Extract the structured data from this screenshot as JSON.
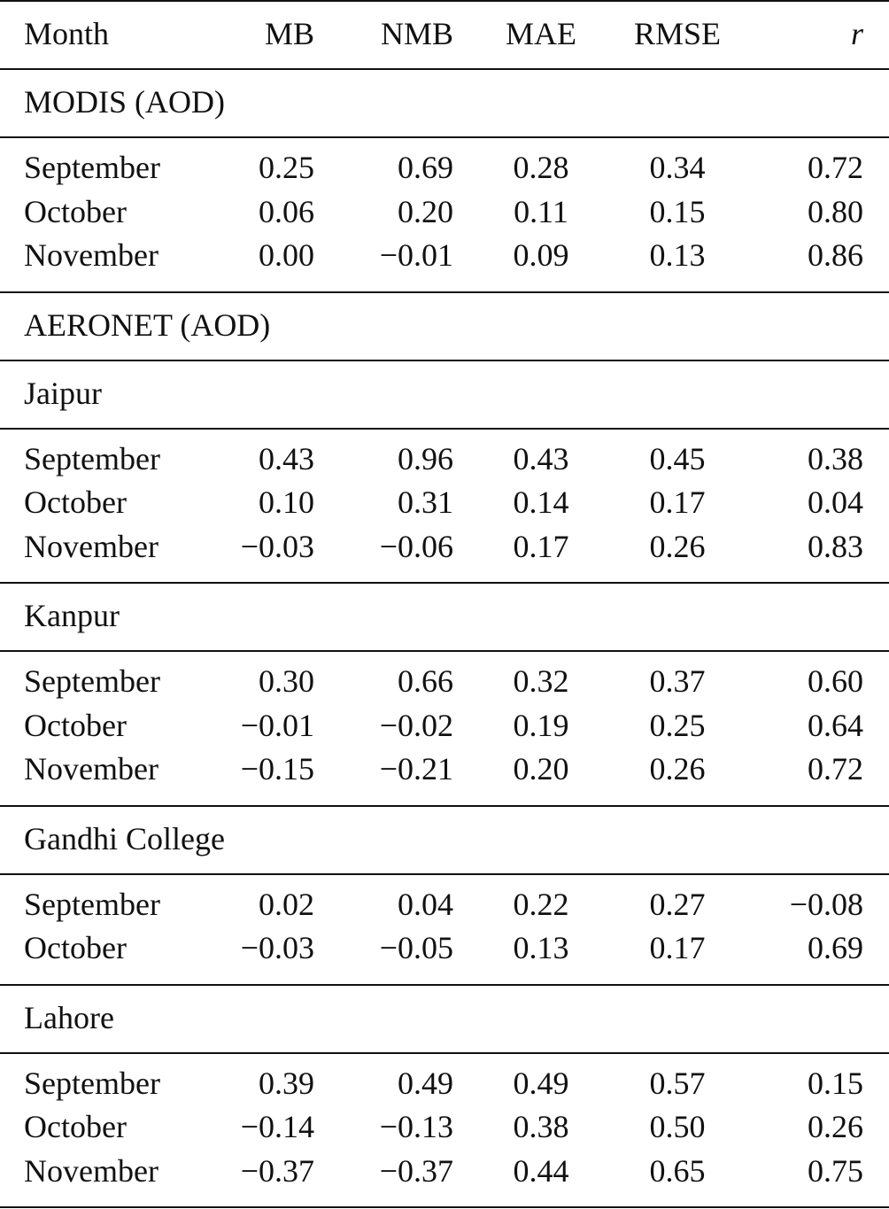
{
  "table": {
    "columns": [
      "Month",
      "MB",
      "NMB",
      "MAE",
      "RMSE",
      "r"
    ],
    "sections": [
      {
        "title": "MODIS (AOD)",
        "rows": [
          [
            "September",
            "0.25",
            "0.69",
            "0.28",
            "0.34",
            "0.72"
          ],
          [
            "October",
            "0.06",
            "0.20",
            "0.11",
            "0.15",
            "0.80"
          ],
          [
            "November",
            "0.00",
            "−0.01",
            "0.09",
            "0.13",
            "0.86"
          ]
        ]
      },
      {
        "title": "AERONET (AOD)"
      },
      {
        "title": "Jaipur",
        "rows": [
          [
            "September",
            "0.43",
            "0.96",
            "0.43",
            "0.45",
            "0.38"
          ],
          [
            "October",
            "0.10",
            "0.31",
            "0.14",
            "0.17",
            "0.04"
          ],
          [
            "November",
            "−0.03",
            "−0.06",
            "0.17",
            "0.26",
            "0.83"
          ]
        ]
      },
      {
        "title": "Kanpur",
        "rows": [
          [
            "September",
            "0.30",
            "0.66",
            "0.32",
            "0.37",
            "0.60"
          ],
          [
            "October",
            "−0.01",
            "−0.02",
            "0.19",
            "0.25",
            "0.64"
          ],
          [
            "November",
            "−0.15",
            "−0.21",
            "0.20",
            "0.26",
            "0.72"
          ]
        ]
      },
      {
        "title": "Gandhi College",
        "rows": [
          [
            "September",
            "0.02",
            "0.04",
            "0.22",
            "0.27",
            "−0.08"
          ],
          [
            "October",
            "−0.03",
            "−0.05",
            "0.13",
            "0.17",
            "0.69"
          ]
        ]
      },
      {
        "title": "Lahore",
        "rows": [
          [
            "September",
            "0.39",
            "0.49",
            "0.49",
            "0.57",
            "0.15"
          ],
          [
            "October",
            "−0.14",
            "−0.13",
            "0.38",
            "0.50",
            "0.26"
          ],
          [
            "November",
            "−0.37",
            "−0.37",
            "0.44",
            "0.65",
            "0.75"
          ]
        ]
      }
    ]
  }
}
